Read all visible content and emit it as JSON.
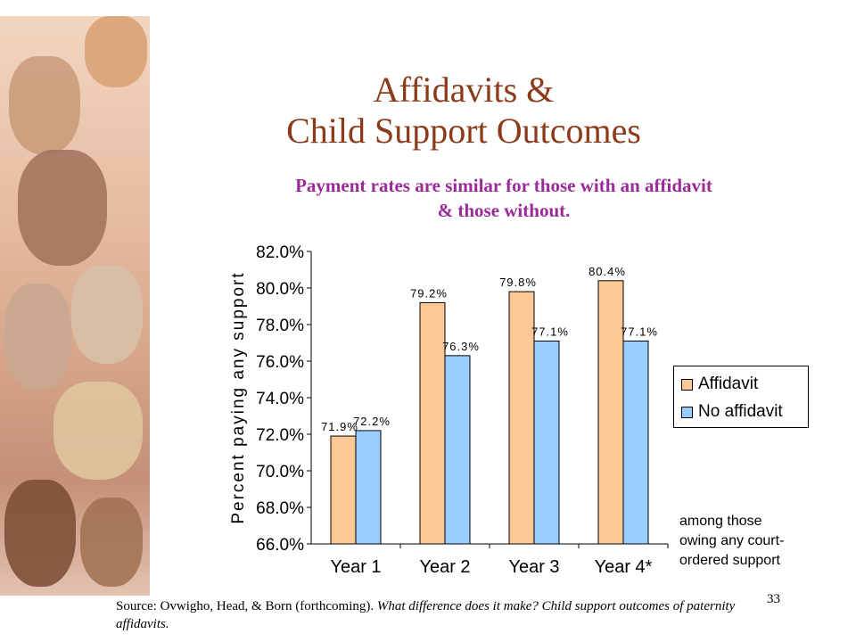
{
  "slide": {
    "title_line1": "Affidavits &",
    "title_line2": "Child Support Outcomes",
    "subtitle_line1": "Payment rates are similar for those with an affidavit",
    "subtitle_line2": "& those without.",
    "note_line1": "among those",
    "note_line2": "owing any court-",
    "note_line3": "ordered support",
    "source_plain": "Source: Ovwigho, Head, & Born (forthcoming).",
    "source_italic": "What difference does it make? Child support outcomes of paternity affidavits.",
    "page_number": "33"
  },
  "colors": {
    "title": "#8b3a1a",
    "subtitle": "#9a2a9a",
    "affidavit": "#fcc896",
    "no_affidavit": "#99ccff"
  },
  "chart_data": {
    "type": "bar",
    "categories": [
      "Year 1",
      "Year 2",
      "Year 3",
      "Year 4*"
    ],
    "series": [
      {
        "name": "Affidavit",
        "values": [
          71.9,
          79.2,
          79.8,
          80.4
        ],
        "labels": [
          "71.9%",
          "79.2%",
          "79.8%",
          "80.4%"
        ]
      },
      {
        "name": "No affidavit",
        "values": [
          72.2,
          76.3,
          77.1,
          77.1
        ],
        "labels": [
          "72.2%",
          "76.3%",
          "77.1%",
          "77.1%"
        ]
      }
    ],
    "ylabel": "Percent paying any support",
    "xlabel": "",
    "ylim": [
      66.0,
      82.0
    ],
    "yticks": [
      66.0,
      68.0,
      70.0,
      72.0,
      74.0,
      76.0,
      78.0,
      80.0,
      82.0
    ],
    "ytick_labels": [
      "66.0%",
      "68.0%",
      "70.0%",
      "72.0%",
      "74.0%",
      "76.0%",
      "78.0%",
      "80.0%",
      "82.0%"
    ],
    "grid": false,
    "legend": "right"
  }
}
